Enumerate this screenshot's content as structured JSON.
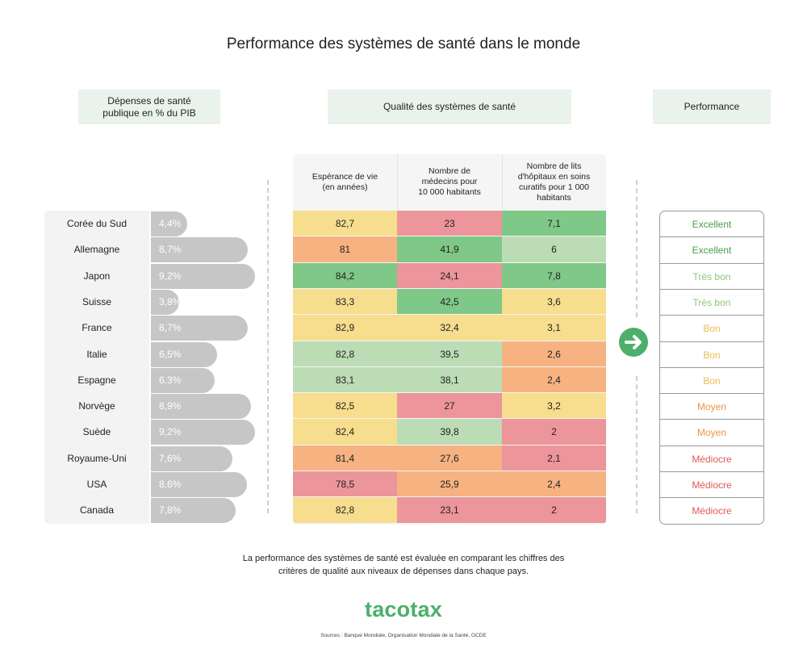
{
  "title": "Performance des systèmes de santé dans le monde",
  "headers": {
    "spending_line1": "Dépenses de santé",
    "spending_line2": "publique en % du PIB",
    "quality": "Qualité des systèmes de santé",
    "performance": "Performance"
  },
  "columns": [
    {
      "line1": "Espérance de vie",
      "line2": "(en années)",
      "line3": "",
      "line4": ""
    },
    {
      "line1": "Nombre de",
      "line2": "médecins pour",
      "line3": "10 000 habitants",
      "line4": ""
    },
    {
      "line1": "Nombre de lits",
      "line2": "d'hôpitaux en soins",
      "line3": "curatifs pour 1 000",
      "line4": "habitants"
    }
  ],
  "colors": {
    "dark_green": "#7fc887",
    "light_green": "#bcdcb5",
    "yellow": "#f7dd8e",
    "orange": "#f6b381",
    "red": "#ec959a",
    "excellent": "#4a9c4d",
    "tres_bon": "#8cc776",
    "bon": "#e9be52",
    "moyen": "#ee9440",
    "mediocre": "#e05a58",
    "bar": "#c6c6c6"
  },
  "chart_data": {
    "type": "table",
    "countries": [
      "Corée du Sud",
      "Allemagne",
      "Japon",
      "Suisse",
      "France",
      "Italie",
      "Espagne",
      "Norvège",
      "Suède",
      "Royaume-Uni",
      "USA",
      "Canada"
    ],
    "spending": {
      "values": [
        4.4,
        8.7,
        9.2,
        3.8,
        8.7,
        6.5,
        6.3,
        8.9,
        9.2,
        7.6,
        8.6,
        7.8
      ],
      "labels": [
        "4,4%",
        "8,7%",
        "9,2%",
        "3,8%",
        "8,7%",
        "6,5%",
        "6,3%",
        "8,9%",
        "9,2%",
        "7,6%",
        "8,6%",
        "7,8%"
      ]
    },
    "life_expectancy": {
      "labels": [
        "82,7",
        "81",
        "84,2",
        "83,3",
        "82,9",
        "82,8",
        "83,1",
        "82,5",
        "82,4",
        "81,4",
        "78,5",
        "82,8"
      ],
      "ratings": [
        "yellow",
        "orange",
        "dark_green",
        "yellow",
        "yellow",
        "light_green",
        "light_green",
        "yellow",
        "yellow",
        "orange",
        "red",
        "yellow"
      ]
    },
    "doctors": {
      "labels": [
        "23",
        "41,9",
        "24,1",
        "42,5",
        "32,4",
        "39,5",
        "38,1",
        "27",
        "39,8",
        "27,6",
        "25,9",
        "23,1"
      ],
      "ratings": [
        "red",
        "dark_green",
        "red",
        "dark_green",
        "yellow",
        "light_green",
        "light_green",
        "red",
        "light_green",
        "orange",
        "orange",
        "red"
      ]
    },
    "beds": {
      "labels": [
        "7,1",
        "6",
        "7,8",
        "3,6",
        "3,1",
        "2,6",
        "2,4",
        "3,2",
        "2",
        "2,1",
        "2,4",
        "2"
      ],
      "ratings": [
        "dark_green",
        "light_green",
        "dark_green",
        "yellow",
        "yellow",
        "orange",
        "orange",
        "yellow",
        "red",
        "red",
        "orange",
        "red"
      ]
    },
    "performance": {
      "labels": [
        "Excellent",
        "Excellent",
        "Très bon",
        "Très bon",
        "Bon",
        "Bon",
        "Bon",
        "Moyen",
        "Moyen",
        "Médiocre",
        "Médiocre",
        "Médiocre"
      ],
      "ratings": [
        "excellent",
        "excellent",
        "tres_bon",
        "tres_bon",
        "bon",
        "bon",
        "bon",
        "moyen",
        "moyen",
        "mediocre",
        "mediocre",
        "mediocre"
      ]
    }
  },
  "note_line1": "La performance des systèmes de santé est évaluée en comparant les chiffres des",
  "note_line2": "critères de qualité aux niveaux de dépenses dans chaque pays.",
  "brand": "tacotax",
  "sources": "Sources : Banque Mondiale, Organisation Mondiale de la Santé, OCDE",
  "icons": {
    "arrow": "arrow-right-icon"
  }
}
